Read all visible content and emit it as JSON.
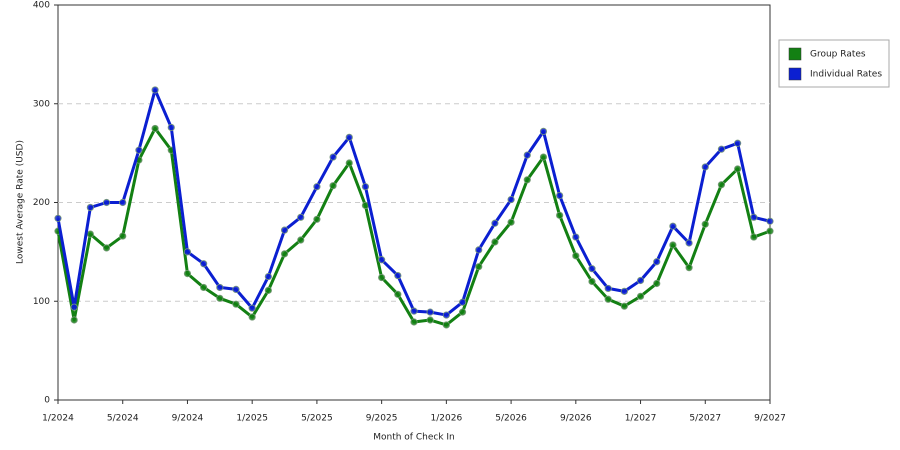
{
  "chart_data": {
    "type": "line",
    "x_label": "Month of Check In",
    "y_label": "Lowest Average Rate (USD)",
    "categories": [
      "1/2024",
      null,
      null,
      null,
      "5/2024",
      null,
      null,
      null,
      "9/2024",
      null,
      null,
      null,
      "1/2025",
      null,
      null,
      null,
      "5/2025",
      null,
      null,
      null,
      "9/2025",
      null,
      null,
      null,
      "1/2026",
      null,
      null,
      null,
      "5/2026",
      null,
      null,
      null,
      "9/2026",
      null,
      null,
      null,
      "1/2027",
      null,
      null,
      null,
      "5/2027",
      null,
      null,
      null,
      "9/2027"
    ],
    "series": [
      {
        "name": "Group Rates",
        "color": "#138013",
        "values": [
          171,
          81,
          168,
          154,
          166,
          243,
          275,
          253,
          128,
          114,
          103,
          97,
          84,
          111,
          148,
          162,
          183,
          217,
          240,
          197,
          124,
          107,
          79,
          81,
          76,
          89,
          135,
          160,
          180,
          223,
          246,
          187,
          146,
          120,
          102,
          95,
          105,
          118,
          157,
          134,
          178,
          218,
          234,
          165,
          171
        ]
      },
      {
        "name": "Individual Rates",
        "color": "#0b1fd1",
        "values": [
          184,
          94,
          195,
          200,
          200,
          253,
          314,
          276,
          150,
          138,
          114,
          112,
          93,
          125,
          172,
          185,
          216,
          246,
          266,
          216,
          142,
          126,
          90,
          89,
          86,
          99,
          152,
          179,
          203,
          248,
          272,
          207,
          165,
          133,
          113,
          110,
          121,
          140,
          176,
          159,
          236,
          254,
          260,
          185,
          181
        ]
      }
    ],
    "ylim": [
      0,
      400
    ],
    "yticks": [
      0,
      100,
      200,
      300,
      400
    ],
    "grid": true,
    "legend": "right"
  }
}
